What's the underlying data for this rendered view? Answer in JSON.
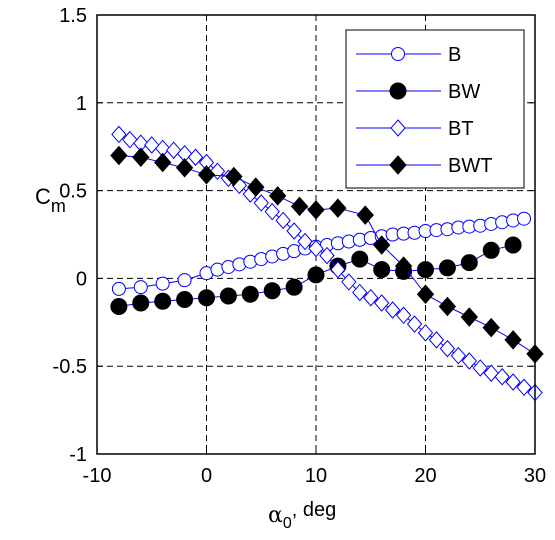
{
  "chart_data": {
    "type": "line",
    "xlabel": {
      "symbol": "α",
      "sub": "0",
      "unit": ", deg"
    },
    "ylabel": {
      "main": "C",
      "sub": "m"
    },
    "xlim": [
      -10,
      30
    ],
    "ylim": [
      -1,
      1.5
    ],
    "xticks": [
      "-10",
      "0",
      "10",
      "20",
      "30"
    ],
    "yticks": [
      "-1",
      "-0.5",
      "0",
      "0.5",
      "1",
      "1.5"
    ],
    "grid": true,
    "legend_position": "top-right",
    "line_color": "#0000ff",
    "series": [
      {
        "name": "B",
        "marker": "circle",
        "fill": "none",
        "x": [
          -8,
          -6,
          -4,
          -2,
          0,
          1,
          2,
          3,
          4,
          5,
          6,
          7,
          8,
          9,
          10,
          11,
          12,
          13,
          14,
          15,
          16,
          17,
          18,
          19,
          20,
          21,
          22,
          23,
          24,
          25,
          26,
          27,
          28,
          29
        ],
        "y": [
          -0.06,
          -0.05,
          -0.03,
          -0.01,
          0.03,
          0.05,
          0.065,
          0.08,
          0.095,
          0.11,
          0.125,
          0.14,
          0.155,
          0.17,
          0.18,
          0.19,
          0.2,
          0.21,
          0.22,
          0.23,
          0.24,
          0.25,
          0.255,
          0.26,
          0.27,
          0.275,
          0.28,
          0.29,
          0.295,
          0.3,
          0.31,
          0.32,
          0.33,
          0.34
        ]
      },
      {
        "name": "BW",
        "marker": "circle",
        "fill": "#000000",
        "x": [
          -8,
          -6,
          -4,
          -2,
          0,
          2,
          4,
          6,
          8,
          10,
          12,
          14,
          16,
          18,
          20,
          22,
          24,
          26,
          28
        ],
        "y": [
          -0.16,
          -0.14,
          -0.13,
          -0.12,
          -0.11,
          -0.1,
          -0.09,
          -0.07,
          -0.05,
          0.02,
          0.07,
          0.11,
          0.05,
          0.04,
          0.05,
          0.06,
          0.09,
          0.16,
          0.19
        ]
      },
      {
        "name": "BT",
        "marker": "diamond",
        "fill": "none",
        "x": [
          -8,
          -7,
          -6,
          -5,
          -4,
          -3,
          -2,
          -1,
          0,
          1,
          2,
          3,
          4,
          5,
          6,
          7,
          8,
          9,
          10,
          11,
          12,
          13,
          14,
          15,
          16,
          17,
          18,
          19,
          20,
          21,
          22,
          23,
          24,
          25,
          26,
          27,
          28,
          29,
          30
        ],
        "y": [
          0.82,
          0.79,
          0.77,
          0.76,
          0.74,
          0.73,
          0.71,
          0.69,
          0.66,
          0.61,
          0.57,
          0.53,
          0.48,
          0.43,
          0.38,
          0.33,
          0.27,
          0.21,
          0.17,
          0.13,
          0.05,
          -0.02,
          -0.08,
          -0.11,
          -0.14,
          -0.18,
          -0.21,
          -0.26,
          -0.31,
          -0.35,
          -0.4,
          -0.44,
          -0.47,
          -0.51,
          -0.54,
          -0.56,
          -0.59,
          -0.62,
          -0.65
        ]
      },
      {
        "name": "BWT",
        "marker": "diamond",
        "fill": "#000000",
        "x": [
          -8,
          -6,
          -4,
          -2,
          0,
          2.5,
          4.5,
          6.5,
          8.5,
          10,
          12,
          14.5,
          16,
          18,
          20,
          22,
          24,
          26,
          28,
          30
        ],
        "y": [
          0.7,
          0.69,
          0.66,
          0.63,
          0.59,
          0.58,
          0.52,
          0.47,
          0.41,
          0.39,
          0.4,
          0.36,
          0.19,
          0.07,
          -0.09,
          -0.16,
          -0.22,
          -0.28,
          -0.35,
          -0.43
        ]
      }
    ]
  }
}
